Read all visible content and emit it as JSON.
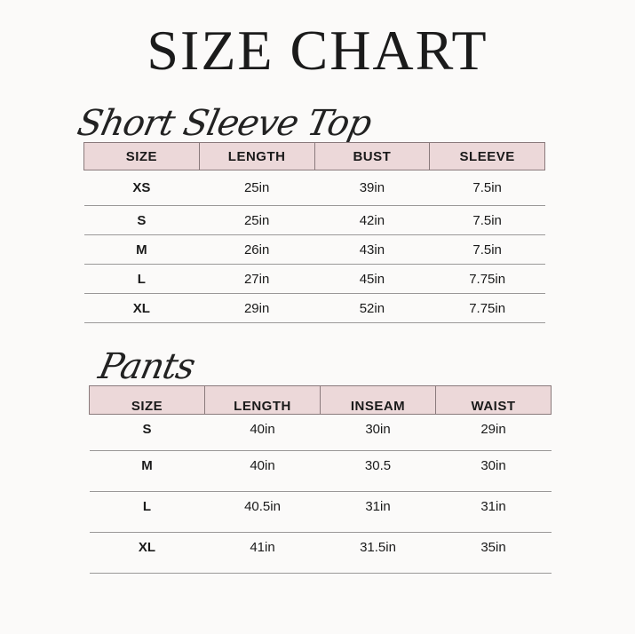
{
  "title": "SIZE CHART",
  "colors": {
    "header_fill": "#ecd8d9",
    "header_border": "#8a7a7c",
    "background": "#fbfaf9"
  },
  "top": {
    "heading": "Short Sleeve Top",
    "columns": [
      "SIZE",
      "LENGTH",
      "BUST",
      "SLEEVE"
    ],
    "rows": [
      [
        "XS",
        "25in",
        "39in",
        "7.5in"
      ],
      [
        "S",
        "25in",
        "42in",
        "7.5in"
      ],
      [
        "M",
        "26in",
        "43in",
        "7.5in"
      ],
      [
        "L",
        "27in",
        "45in",
        "7.75in"
      ],
      [
        "XL",
        "29in",
        "52in",
        "7.75in"
      ]
    ]
  },
  "pants": {
    "heading": "Pants",
    "columns": [
      "SIZE",
      "LENGTH",
      "INSEAM",
      "WAIST"
    ],
    "rows": [
      [
        "S",
        "40in",
        "30in",
        "29in"
      ],
      [
        "M",
        "40in",
        "30.5",
        "30in"
      ],
      [
        "L",
        "40.5in",
        "31in",
        "31in"
      ],
      [
        "XL",
        "41in",
        "31.5in",
        "35in"
      ]
    ]
  }
}
